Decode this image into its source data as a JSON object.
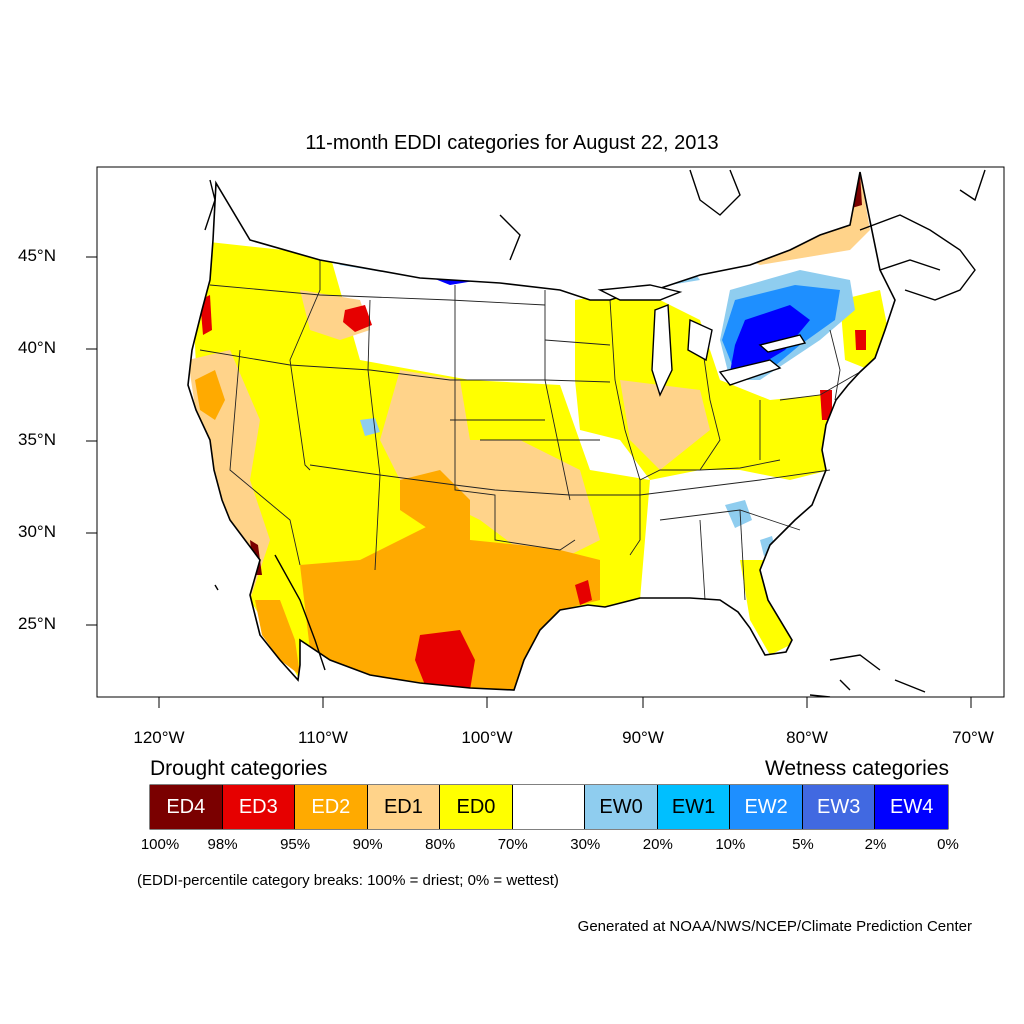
{
  "title": "11-month EDDI categories for August 22, 2013",
  "axes": {
    "lat_labels": [
      "45°N",
      "40°N",
      "35°N",
      "30°N",
      "25°N"
    ],
    "lon_labels": [
      "120°W",
      "110°W",
      "100°W",
      "90°W",
      "80°W",
      "70°W"
    ]
  },
  "legend": {
    "drought_heading": "Drought categories",
    "wetness_heading": "Wetness categories",
    "categories": [
      {
        "label": "ED4",
        "color": "#7a0000",
        "text_color": "#ffffff"
      },
      {
        "label": "ED3",
        "color": "#e60000",
        "text_color": "#ffffff"
      },
      {
        "label": "ED2",
        "color": "#ffaa00",
        "text_color": "#ffffff"
      },
      {
        "label": "ED1",
        "color": "#ffd38a",
        "text_color": "#000000"
      },
      {
        "label": "ED0",
        "color": "#ffff00",
        "text_color": "#000000"
      },
      {
        "label": "",
        "color": "#ffffff",
        "text_color": "#000000"
      },
      {
        "label": "EW0",
        "color": "#8fcdef",
        "text_color": "#000000"
      },
      {
        "label": "EW1",
        "color": "#00bfff",
        "text_color": "#000000"
      },
      {
        "label": "EW2",
        "color": "#1e8fff",
        "text_color": "#ffffff"
      },
      {
        "label": "EW3",
        "color": "#4169e1",
        "text_color": "#ffffff"
      },
      {
        "label": "EW4",
        "color": "#0000ff",
        "text_color": "#ffffff"
      }
    ],
    "breaks": [
      "100%",
      "98%",
      "95%",
      "90%",
      "80%",
      "70%",
      "30%",
      "20%",
      "10%",
      "5%",
      "2%",
      "0%"
    ],
    "note": "(EDDI-percentile category breaks: 100% = driest; 0% = wettest)"
  },
  "credit": "Generated at NOAA/NWS/NCEP/Climate Prediction Center"
}
